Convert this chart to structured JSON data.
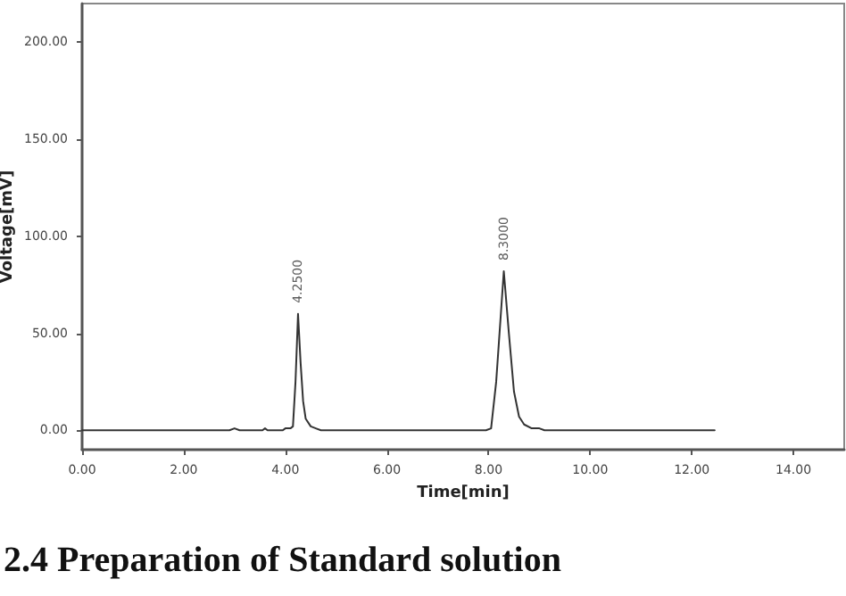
{
  "chart_data": {
    "type": "line",
    "xlabel": "Time[min]",
    "ylabel": "Voltage[mV]",
    "x": [
      0,
      2.9,
      3.0,
      3.1,
      3.55,
      3.6,
      3.65,
      3.95,
      4.0,
      4.1,
      4.15,
      4.2,
      4.25,
      4.3,
      4.35,
      4.4,
      4.5,
      4.6,
      4.7,
      7.95,
      8.05,
      8.15,
      8.3,
      8.4,
      8.5,
      8.6,
      8.7,
      8.85,
      9.0,
      9.1,
      12.45
    ],
    "series": [
      {
        "color": "#333333",
        "values": [
          0,
          0,
          1,
          0,
          0,
          1,
          0,
          0,
          1,
          1,
          2,
          25,
          60,
          35,
          15,
          6,
          2,
          1,
          0,
          0,
          1,
          25,
          82,
          50,
          20,
          7,
          3,
          1,
          1,
          0,
          0
        ]
      }
    ],
    "xlim": [
      0,
      15
    ],
    "ylim": [
      -10,
      220
    ],
    "xticks": [
      {
        "value": 0,
        "label": "0.00"
      },
      {
        "value": 2,
        "label": "2.00"
      },
      {
        "value": 4,
        "label": "4.00"
      },
      {
        "value": 6,
        "label": "6.00"
      },
      {
        "value": 8,
        "label": "8.00"
      },
      {
        "value": 10,
        "label": "10.00"
      },
      {
        "value": 12,
        "label": "12.00"
      },
      {
        "value": 14,
        "label": "14.00"
      }
    ],
    "yticks": [
      {
        "value": 0,
        "label": "0.00"
      },
      {
        "value": 50,
        "label": "50.00"
      },
      {
        "value": 100,
        "label": "100.00"
      },
      {
        "value": 150,
        "label": "150.00"
      },
      {
        "value": 200,
        "label": "200.00"
      }
    ],
    "annotations": [
      {
        "text": "4.2500",
        "x": 4.25,
        "y": 60
      },
      {
        "text": "8.3000",
        "x": 8.3,
        "y": 82
      },
      "2.4 Preparation of Standard solution"
    ],
    "grid": false,
    "marker": "none",
    "line_style": "solid"
  }
}
